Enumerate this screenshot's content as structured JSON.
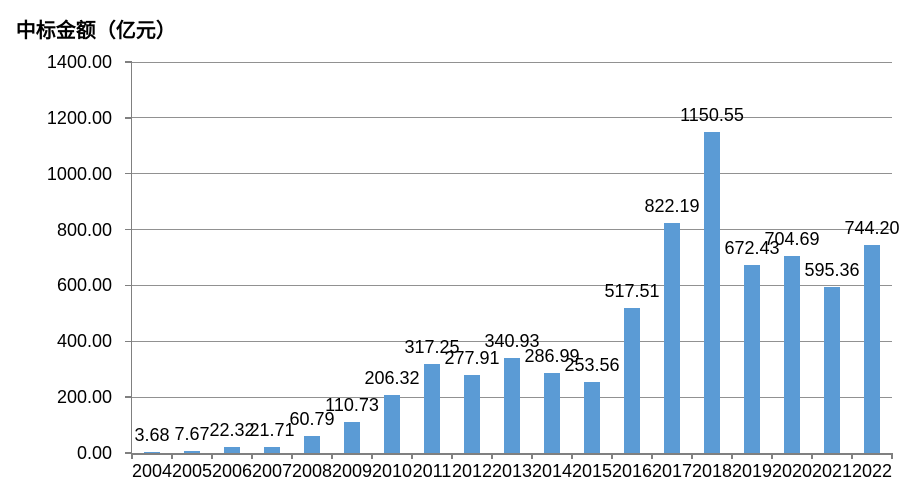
{
  "page_title": "中标金额（亿元）",
  "colors": {
    "bar": "#5B9BD5",
    "gridline": "#919191",
    "axis": "#808080",
    "text": "#000000",
    "background": "#FFFFFF"
  },
  "chart_data": {
    "type": "bar",
    "title": "中标金额（亿元）",
    "categories": [
      "2004",
      "2005",
      "2006",
      "2007",
      "2008",
      "2009",
      "2010",
      "2011",
      "2012",
      "2013",
      "2014",
      "2015",
      "2016",
      "2017",
      "2018",
      "2019",
      "2020",
      "2021",
      "2022"
    ],
    "values": [
      3.68,
      7.67,
      22.32,
      21.71,
      60.79,
      110.73,
      206.32,
      317.25,
      277.91,
      340.93,
      286.99,
      253.56,
      517.51,
      822.19,
      1150.55,
      672.43,
      704.69,
      595.36,
      744.2
    ],
    "data_labels": [
      "3.68",
      "7.67",
      "22.32",
      "21.71",
      "60.79",
      "110.73",
      "206.32",
      "317.25",
      "277.91",
      "340.93",
      "286.99",
      "253.56",
      "517.51",
      "822.19",
      "1150.55",
      "672.43",
      "704.69",
      "595.36",
      "744.20"
    ],
    "xlabel": "",
    "ylabel": "中标金额（亿元）",
    "ylim": [
      0,
      1400
    ],
    "ytick_interval": 200,
    "ytick_labels": [
      "0.00",
      "200.00",
      "400.00",
      "600.00",
      "800.00",
      "1000.00",
      "1200.00",
      "1400.00"
    ],
    "grid": true,
    "legend": "none"
  }
}
